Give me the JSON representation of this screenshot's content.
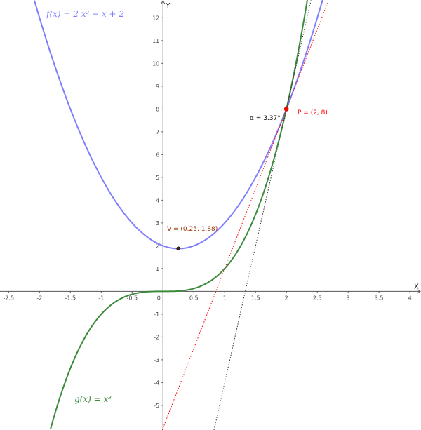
{
  "chart_data": {
    "type": "line",
    "title": "",
    "xlabel": "X",
    "ylabel": "Y",
    "xlim": [
      -2.64,
      4.18
    ],
    "ylim": [
      -6.08,
      12.78
    ],
    "grid": false,
    "x_ticks": [
      "-2.5",
      "-2",
      "-1.5",
      "-1",
      "-0.5",
      "0",
      "0.5",
      "1",
      "1.5",
      "2",
      "2.5",
      "3",
      "3.5",
      "4"
    ],
    "y_ticks": [
      "-5",
      "-4",
      "-3",
      "-2",
      "-1",
      "1",
      "2",
      "3",
      "4",
      "5",
      "6",
      "7",
      "8",
      "9",
      "10",
      "11",
      "12"
    ],
    "series": [
      {
        "name": "f(x) = 2x² − x + 2",
        "poly": [
          2,
          -1,
          2
        ],
        "color": "#7f7fff",
        "style": "solid"
      },
      {
        "name": "g(x) = x³",
        "poly": [
          1,
          0,
          0,
          0
        ],
        "color": "#3c8a3c",
        "style": "solid"
      },
      {
        "slope": 7,
        "intercept": -6,
        "color": "#ff0000",
        "style": "dotted"
      },
      {
        "slope": 12,
        "intercept": -16,
        "color": "#333333",
        "style": "dotted"
      }
    ],
    "points": [
      {
        "label": "V = (0.25, 1.88)",
        "x": 0.25,
        "y": 1.88,
        "color": "#993300"
      },
      {
        "label": "P = (2, 8)",
        "x": 2,
        "y": 8,
        "color": "#ff0000"
      }
    ],
    "annotations": [
      {
        "text": "α = 3.37°"
      }
    ],
    "labels": {
      "f": "f(x)  =  2 x² − x + 2",
      "g": "g(x)  =  x³"
    }
  }
}
